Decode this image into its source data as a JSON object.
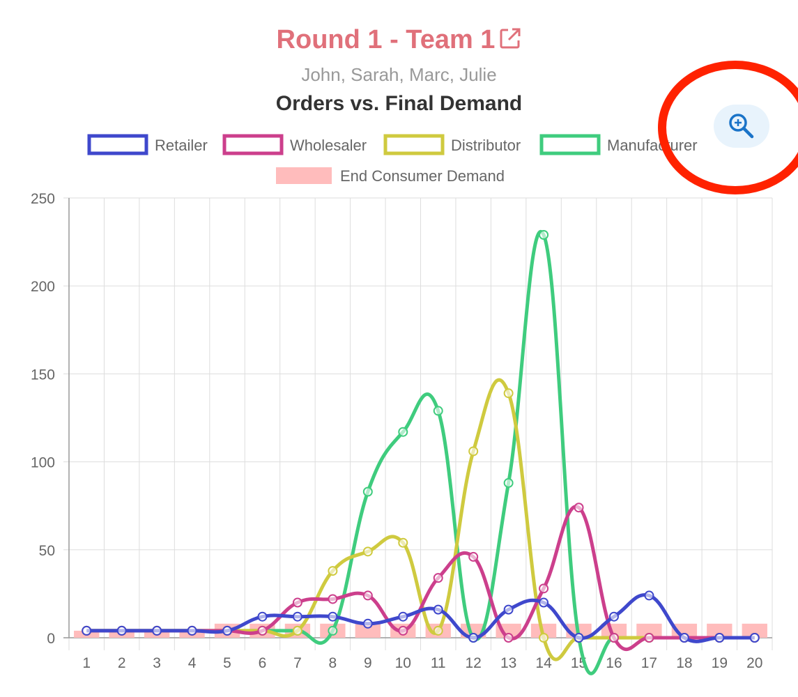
{
  "header": {
    "title": "Round 1 - Team 1",
    "players": "John, Sarah, Marc, Julie"
  },
  "colors": {
    "title": "#e0707a",
    "zoom_button_bg": "#e8f3fc",
    "zoom_icon": "#1a73c8",
    "annotation": "#ff2200"
  },
  "icons": {
    "external_link": "external-link-icon",
    "zoom": "zoom-in-icon"
  },
  "chart_data": {
    "type": "line",
    "title": "Orders vs. Final Demand",
    "xlabel": "",
    "ylabel": "",
    "categories": [
      "1",
      "2",
      "3",
      "4",
      "5",
      "6",
      "7",
      "8",
      "9",
      "10",
      "11",
      "12",
      "13",
      "14",
      "15",
      "16",
      "17",
      "18",
      "19",
      "20"
    ],
    "ylim": [
      0,
      250
    ],
    "yticks": [
      0,
      50,
      100,
      150,
      200,
      250
    ],
    "grid": true,
    "legend_position": "top",
    "series": [
      {
        "name": "Retailer",
        "kind": "line",
        "color": "#3f48cc",
        "values": [
          4,
          4,
          4,
          4,
          4,
          12,
          12,
          12,
          8,
          12,
          16,
          0,
          16,
          20,
          0,
          12,
          24,
          0,
          0,
          0
        ]
      },
      {
        "name": "Wholesaler",
        "kind": "line",
        "color": "#cc3f8c",
        "values": [
          4,
          4,
          4,
          4,
          4,
          4,
          20,
          22,
          24,
          4,
          34,
          46,
          0,
          28,
          74,
          0,
          0,
          0,
          0,
          0
        ]
      },
      {
        "name": "Distributor",
        "kind": "line",
        "color": "#cfca3f",
        "values": [
          4,
          4,
          4,
          4,
          4,
          4,
          4,
          38,
          49,
          54,
          4,
          106,
          139,
          0,
          0,
          0,
          0,
          0,
          0,
          0
        ]
      },
      {
        "name": "Manufacturer",
        "kind": "line",
        "color": "#3fcc7e",
        "values": [
          4,
          4,
          4,
          4,
          4,
          4,
          4,
          4,
          83,
          117,
          129,
          0,
          88,
          229,
          0,
          0,
          0,
          0,
          0,
          0
        ]
      },
      {
        "name": "End Consumer Demand",
        "kind": "bar",
        "color": "#ffbcbc",
        "values": [
          4,
          4,
          4,
          4,
          8,
          8,
          8,
          8,
          8,
          8,
          8,
          8,
          8,
          8,
          8,
          8,
          8,
          8,
          8,
          8
        ]
      }
    ]
  }
}
